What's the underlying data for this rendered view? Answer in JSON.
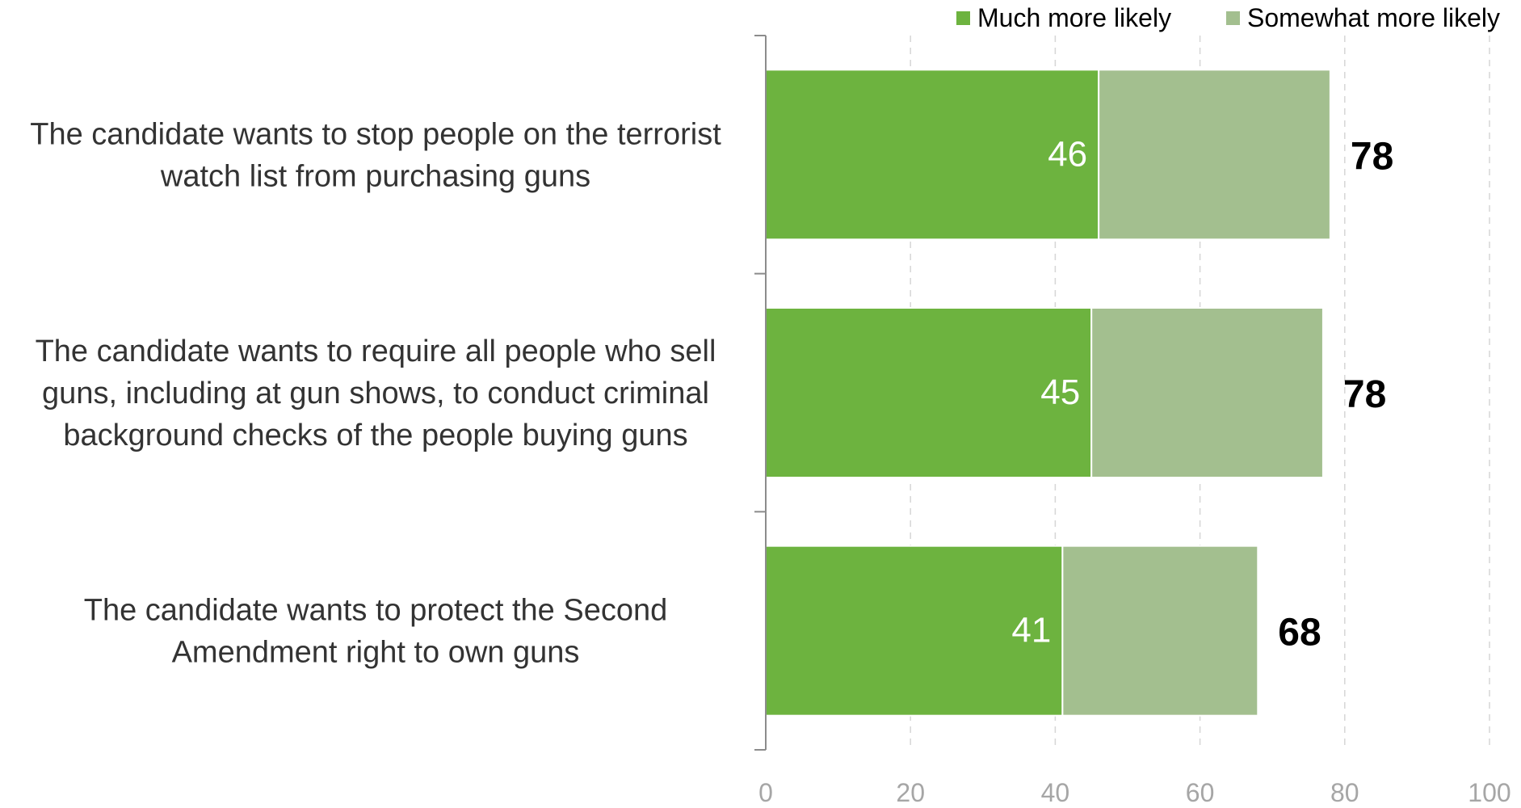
{
  "chart_data": {
    "type": "bar",
    "orientation": "horizontal",
    "stacked": true,
    "categories": [
      [
        "The candidate wants to stop people on the terrorist",
        "watch list from purchasing guns"
      ],
      [
        "The candidate wants to require all people who sell",
        "guns, including at gun shows, to conduct criminal",
        "background checks of the people buying guns"
      ],
      [
        "The candidate wants to protect the Second",
        "Amendment right to own guns"
      ]
    ],
    "series": [
      {
        "name": "Much more likely",
        "values": [
          46,
          45,
          41
        ],
        "labels": [
          "46",
          "45",
          "41"
        ],
        "color": "#6db33f"
      },
      {
        "name": "Somewhat more likely",
        "values": [
          32,
          32,
          27
        ],
        "color": "#a3bf8f"
      }
    ],
    "totals": [
      "78",
      "78",
      "68"
    ],
    "xlim": [
      0,
      100
    ],
    "xticks": [
      0,
      20,
      40,
      60,
      80,
      100
    ],
    "xtick_labels": [
      "0",
      "20",
      "40",
      "60",
      "80",
      "100"
    ],
    "grid": true,
    "legend": "top-right",
    "title": "",
    "xlabel": "",
    "ylabel": ""
  }
}
